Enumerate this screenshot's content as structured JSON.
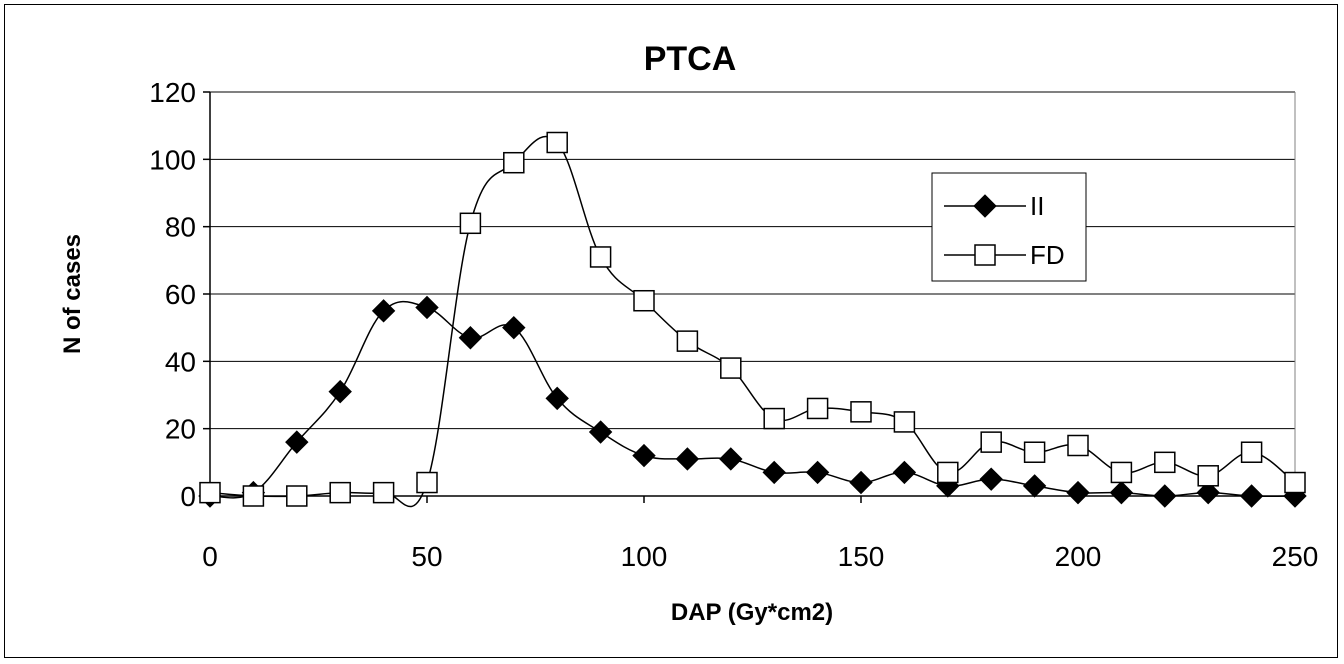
{
  "chart_data": {
    "type": "line",
    "title": "PTCA",
    "xlabel": "DAP (Gy*cm2)",
    "ylabel": "N of cases",
    "xlim": [
      0,
      250
    ],
    "ylim": [
      0,
      120
    ],
    "x_ticks": [
      0,
      50,
      100,
      150,
      200,
      250
    ],
    "y_ticks": [
      0,
      20,
      40,
      60,
      80,
      100,
      120
    ],
    "grid": "horizontal",
    "legend_position": "right",
    "series": [
      {
        "name": "II",
        "marker": "filled-diamond",
        "color": "#000000",
        "x": [
          0,
          10,
          20,
          30,
          40,
          50,
          60,
          70,
          80,
          90,
          100,
          110,
          120,
          130,
          140,
          150,
          160,
          170,
          180,
          190,
          200,
          210,
          220,
          230,
          240,
          250
        ],
        "values": [
          0,
          1,
          16,
          31,
          55,
          56,
          47,
          50,
          29,
          19,
          12,
          11,
          11,
          7,
          7,
          4,
          7,
          3,
          5,
          3,
          1,
          1,
          0,
          1,
          0,
          0
        ]
      },
      {
        "name": "FD",
        "marker": "open-square",
        "color": "#000000",
        "x": [
          0,
          10,
          20,
          30,
          40,
          50,
          60,
          70,
          80,
          90,
          100,
          110,
          120,
          130,
          140,
          150,
          160,
          170,
          180,
          190,
          200,
          210,
          220,
          230,
          240,
          250
        ],
        "values": [
          1,
          0,
          0,
          1,
          1,
          4,
          81,
          99,
          105,
          71,
          58,
          46,
          38,
          23,
          26,
          25,
          22,
          7,
          16,
          13,
          15,
          7,
          10,
          6,
          13,
          4
        ]
      }
    ]
  }
}
